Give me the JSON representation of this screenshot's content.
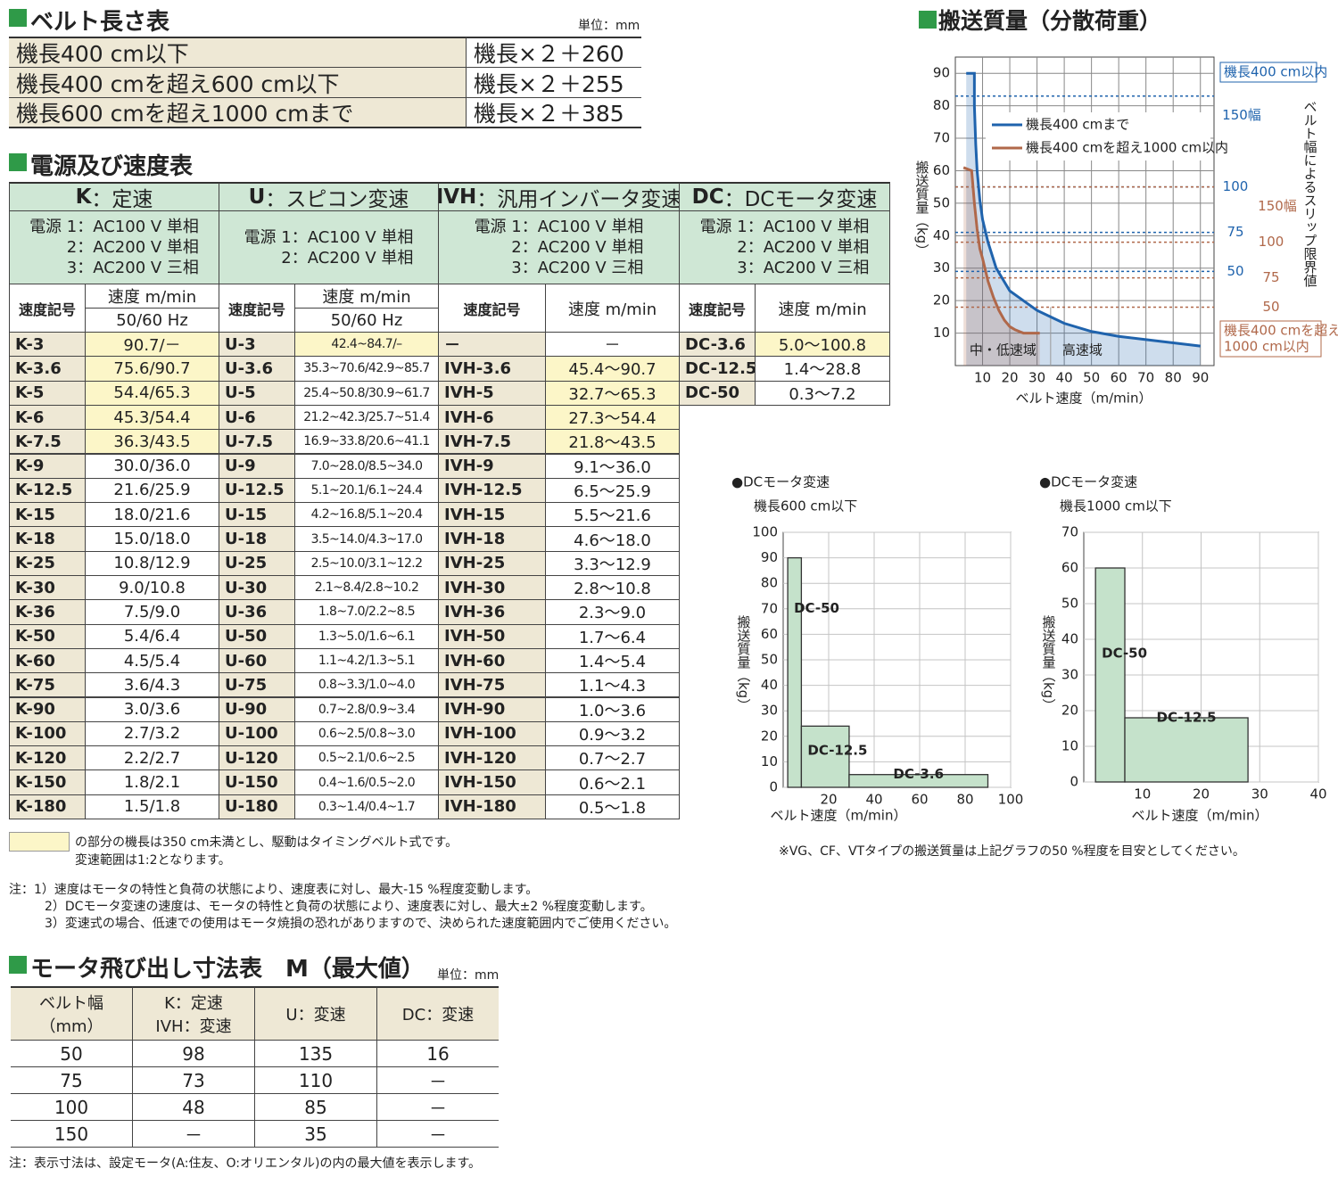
{
  "belt_table": {
    "title": "ベルト長さ表",
    "unit": "単位：mm",
    "rows": [
      [
        "機長400 cm以下",
        "機長×２＋260"
      ],
      [
        "機長400 cmを超え600 cm以下",
        "機長×２＋255"
      ],
      [
        "機長600 cmを超え1000 cmまで",
        "機長×２＋385"
      ]
    ]
  },
  "speed_table": {
    "title": "電源及び速度表",
    "groups": [
      {
        "code": "K",
        "label": "：定速",
        "power": [
          "電源 1：AC100 V 単相",
          "2：AC200 V 単相",
          "3：AC200 V 三相"
        ],
        "subheaders": [
          "速度記号",
          "速度 m/min",
          "50/60 Hz"
        ],
        "rows": [
          [
            "K-3",
            "90.7/－"
          ],
          [
            "K-3.6",
            "75.6/90.7"
          ],
          [
            "K-5",
            "54.4/65.3"
          ],
          [
            "K-6",
            "45.3/54.4"
          ],
          [
            "K-7.5",
            "36.3/43.5"
          ],
          [
            "K-9",
            "30.0/36.0"
          ],
          [
            "K-12.5",
            "21.6/25.9"
          ],
          [
            "K-15",
            "18.0/21.6"
          ],
          [
            "K-18",
            "15.0/18.0"
          ],
          [
            "K-25",
            "10.8/12.9"
          ],
          [
            "K-30",
            "9.0/10.8"
          ],
          [
            "K-36",
            "7.5/9.0"
          ],
          [
            "K-50",
            "5.4/6.4"
          ],
          [
            "K-60",
            "4.5/5.4"
          ],
          [
            "K-75",
            "3.6/4.3"
          ],
          [
            "K-90",
            "3.0/3.6"
          ],
          [
            "K-100",
            "2.7/3.2"
          ],
          [
            "K-120",
            "2.2/2.7"
          ],
          [
            "K-150",
            "1.8/2.1"
          ],
          [
            "K-180",
            "1.5/1.8"
          ]
        ]
      },
      {
        "code": "U",
        "label": "：スピコン変速",
        "power": [
          "電源 1：AC100 V 単相",
          "2：AC200 V 単相"
        ],
        "subheaders": [
          "速度記号",
          "速度 m/min",
          "50/60 Hz"
        ],
        "rows": [
          [
            "U-3",
            "42.4~84.7/–"
          ],
          [
            "U-3.6",
            "35.3~70.6/42.9~85.7"
          ],
          [
            "U-5",
            "25.4~50.8/30.9~61.7"
          ],
          [
            "U-6",
            "21.2~42.3/25.7~51.4"
          ],
          [
            "U-7.5",
            "16.9~33.8/20.6~41.1"
          ],
          [
            "U-9",
            "7.0~28.0/8.5~34.0"
          ],
          [
            "U-12.5",
            "5.1~20.1/6.1~24.4"
          ],
          [
            "U-15",
            "4.2~16.8/5.1~20.4"
          ],
          [
            "U-18",
            "3.5~14.0/4.3~17.0"
          ],
          [
            "U-25",
            "2.5~10.0/3.1~12.2"
          ],
          [
            "U-30",
            "2.1~8.4/2.8~10.2"
          ],
          [
            "U-36",
            "1.8~7.0/2.2~8.5"
          ],
          [
            "U-50",
            "1.3~5.0/1.6~6.1"
          ],
          [
            "U-60",
            "1.1~4.2/1.3~5.1"
          ],
          [
            "U-75",
            "0.8~3.3/1.0~4.0"
          ],
          [
            "U-90",
            "0.7~2.8/0.9~3.4"
          ],
          [
            "U-100",
            "0.6~2.5/0.8~3.0"
          ],
          [
            "U-120",
            "0.5~2.1/0.6~2.5"
          ],
          [
            "U-150",
            "0.4~1.6/0.5~2.0"
          ],
          [
            "U-180",
            "0.3~1.4/0.4~1.7"
          ]
        ]
      },
      {
        "code": "IVH",
        "label": "：汎用インバータ変速",
        "power": [
          "電源 1：AC100 V 単相",
          "2：AC200 V 単相",
          "3：AC200 V 三相"
        ],
        "subheaders": [
          "速度記号",
          "速度 m/min"
        ],
        "rows": [
          [
            "－",
            "－"
          ],
          [
            "IVH-3.6",
            "45.4～90.7"
          ],
          [
            "IVH-5",
            "32.7～65.3"
          ],
          [
            "IVH-6",
            "27.3～54.4"
          ],
          [
            "IVH-7.5",
            "21.8～43.5"
          ],
          [
            "IVH-9",
            "9.1～36.0"
          ],
          [
            "IVH-12.5",
            "6.5～25.9"
          ],
          [
            "IVH-15",
            "5.5～21.6"
          ],
          [
            "IVH-18",
            "4.6～18.0"
          ],
          [
            "IVH-25",
            "3.3～12.9"
          ],
          [
            "IVH-30",
            "2.8～10.8"
          ],
          [
            "IVH-36",
            "2.3～9.0"
          ],
          [
            "IVH-50",
            "1.7～6.4"
          ],
          [
            "IVH-60",
            "1.4～5.4"
          ],
          [
            "IVH-75",
            "1.1～4.3"
          ],
          [
            "IVH-90",
            "1.0～3.6"
          ],
          [
            "IVH-100",
            "0.9～3.2"
          ],
          [
            "IVH-120",
            "0.7～2.7"
          ],
          [
            "IVH-150",
            "0.6～2.1"
          ],
          [
            "IVH-180",
            "0.5～1.8"
          ]
        ]
      },
      {
        "code": "DC",
        "label": "：DCモータ変速",
        "power": [
          "電源 1：AC100 V 単相",
          "2：AC200 V 単相",
          "3：AC200 V 三相"
        ],
        "subheaders": [
          "速度記号",
          "速度 m/min"
        ],
        "rows": [
          [
            "DC-3.6",
            "5.0～100.8"
          ],
          [
            "DC-12.5",
            "1.4～28.8"
          ],
          [
            "DC-50",
            "0.3～7.2"
          ]
        ]
      }
    ],
    "legend_note": [
      "の部分の機長は350 cm未満とし、駆動はタイミングベルト式です。",
      "変速範囲は1:2となります。"
    ],
    "notes": [
      "注：1）速度はモータの特性と負荷の状態により、速度表に対し、最大-15 %程度変動します。",
      "2）DCモータ変速の速度は、モータの特性と負荷の状態により、速度表に対し、最大±2 %程度変動します。",
      "3）変速式の場合、低速での使用はモータ焼損の恐れがありますので、決められた速度範囲内でご使用ください。"
    ]
  },
  "motor_table": {
    "title": "モータ飛び出し寸法表　M（最大値）",
    "unit": "単位：mm",
    "headers": [
      [
        "ベルト幅",
        "（mm）"
      ],
      [
        "K：定速",
        "IVH：変速"
      ],
      [
        "U：変速"
      ],
      [
        "DC：変速"
      ]
    ],
    "rows": [
      [
        50,
        98,
        135,
        16
      ],
      [
        75,
        73,
        110,
        "－"
      ],
      [
        100,
        48,
        85,
        "－"
      ],
      [
        150,
        "－",
        35,
        "－"
      ]
    ],
    "note": "注：表示寸法は、設定モータ(A:住友、O:オリエンタル)の内の最大値を表示します。"
  },
  "chart_note": "※VG、CF、VTタイプの搬送質量は上記グラフの50 %程度を目安としてください。",
  "chart_data": [
    {
      "type": "line",
      "title": "搬送質量（分散荷重）",
      "x_label": "ベルト速度（m/min）",
      "y_label": "搬送質量（kg）",
      "xlim": [
        0,
        95
      ],
      "ylim": [
        0,
        95
      ],
      "xticks": [
        10,
        20,
        30,
        40,
        50,
        60,
        70,
        80,
        90
      ],
      "yticks": [
        10,
        20,
        30,
        40,
        50,
        60,
        70,
        80,
        90
      ],
      "grid": true,
      "legend": "upper right",
      "series": [
        {
          "name": "機長400 cmまで",
          "color": "#1f63ad",
          "x": [
            4,
            7,
            7,
            7.5,
            8,
            9,
            10,
            12,
            15,
            20,
            25,
            30,
            35,
            40,
            50,
            60,
            70,
            80,
            90
          ],
          "values": [
            90,
            90,
            80,
            68,
            60,
            51,
            45,
            38,
            30,
            23,
            20,
            17,
            15,
            13,
            10.5,
            9,
            8,
            7,
            6
          ]
        },
        {
          "name": "機長400 cmを超え1000 cm以内",
          "color": "#b0684a",
          "x": [
            3,
            6,
            6.5,
            7,
            8,
            9,
            10,
            12,
            14,
            16,
            18,
            20,
            22,
            25,
            31
          ],
          "values": [
            61,
            60,
            55,
            50,
            42,
            36,
            33,
            26,
            21,
            17,
            14,
            12,
            11,
            10,
            10
          ]
        }
      ],
      "limits": [
        {
          "label_lines": [
            "機長400 cm以内"
          ],
          "color": "#1f63ad",
          "values": [
            83,
            55,
            41,
            29
          ],
          "widths": [
            "150幅",
            "100",
            "75",
            "50"
          ]
        },
        {
          "label_lines": [
            "機長400 cmを超え",
            "1000 cm以内"
          ],
          "color": "#b0684a",
          "values": [
            55,
            38,
            27,
            18
          ],
          "widths": [
            "150幅",
            "100",
            "75",
            "50"
          ]
        }
      ],
      "limit_title": "ベルト幅によるスリップ限界値",
      "region_split": 35,
      "regions": [
        "中・低速域",
        "高速域"
      ]
    },
    {
      "type": "bar",
      "title": "●DCモータ変速",
      "subtitle": "機長600 cm以下",
      "x_label": "ベルト速度（m/min）",
      "y_label": "搬送質量（kg）",
      "xlim": [
        0,
        100
      ],
      "ylim": [
        0,
        100
      ],
      "xticks": [
        20,
        40,
        60,
        80,
        100
      ],
      "yticks": [
        0,
        10,
        20,
        30,
        40,
        50,
        60,
        70,
        80,
        90,
        100
      ],
      "grid": true,
      "color": "#c5e2cb",
      "categories": [
        "DC-50",
        "DC-12.5",
        "DC-3.6"
      ],
      "values": [
        90,
        24,
        5
      ],
      "spans": [
        [
          2,
          8
        ],
        [
          8,
          29
        ],
        [
          29,
          90
        ]
      ]
    },
    {
      "type": "bar",
      "title": "●DCモータ変速",
      "subtitle": "機長1000 cm以下",
      "x_label": "ベルト速度（m/min）",
      "y_label": "搬送質量（kg）",
      "xlim": [
        0,
        40
      ],
      "ylim": [
        0,
        70
      ],
      "xticks": [
        10,
        20,
        30,
        40
      ],
      "yticks": [
        0,
        10,
        20,
        30,
        40,
        50,
        60,
        70
      ],
      "grid": true,
      "color": "#c5e2cb",
      "categories": [
        "DC-50",
        "DC-12.5"
      ],
      "values": [
        60,
        18
      ],
      "spans": [
        [
          2,
          7
        ],
        [
          7,
          28
        ]
      ]
    }
  ]
}
